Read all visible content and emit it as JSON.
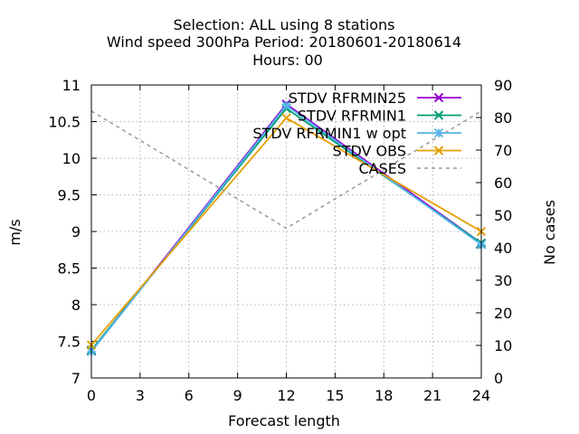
{
  "chart_data": {
    "type": "line",
    "title": [
      "Selection: ALL using     8 stations",
      "Wind speed 300hPa   Period: 20180601-20180614",
      "Hours:  00"
    ],
    "xlabel": "Forecast length",
    "ylabel": "m/s",
    "y2label": "No cases",
    "xlim": [
      0,
      24
    ],
    "ylim": [
      7,
      11
    ],
    "y2lim": [
      0,
      90
    ],
    "xticks": [
      "0",
      "3",
      "6",
      "9",
      "12",
      "15",
      "18",
      "21",
      "24"
    ],
    "yticks": [
      "7",
      "7.5",
      "8",
      "8.5",
      "9",
      "9.5",
      "10",
      "10.5",
      "11"
    ],
    "y2ticks": [
      "0",
      "10",
      "20",
      "30",
      "40",
      "50",
      "60",
      "70",
      "80",
      "90"
    ],
    "grid": true,
    "legend_position": "top-right",
    "series": [
      {
        "name": "STDV RFRMIN25",
        "color": "#9400d3",
        "marker": "x",
        "axis": "y1",
        "x": [
          0,
          12,
          24
        ],
        "y": [
          7.37,
          10.74,
          8.84
        ]
      },
      {
        "name": "STDV RFRMIN1",
        "color": "#009e73",
        "marker": "x",
        "axis": "y1",
        "x": [
          0,
          12,
          24
        ],
        "y": [
          7.38,
          10.68,
          8.84
        ]
      },
      {
        "name": "STDV RFRMIN1 w opt",
        "color": "#56b4e9",
        "marker": "star",
        "axis": "y1",
        "x": [
          0,
          12,
          24
        ],
        "y": [
          7.36,
          10.72,
          8.82
        ]
      },
      {
        "name": "STDV OBS",
        "color": "#e69f00",
        "marker": "x",
        "axis": "y1",
        "x": [
          0,
          12,
          24
        ],
        "y": [
          7.45,
          10.55,
          9.0
        ]
      },
      {
        "name": "CASES",
        "color": "#999999",
        "marker": "none",
        "dash": true,
        "axis": "y2",
        "x": [
          0,
          12,
          24
        ],
        "y": [
          82,
          46,
          82
        ]
      }
    ]
  }
}
